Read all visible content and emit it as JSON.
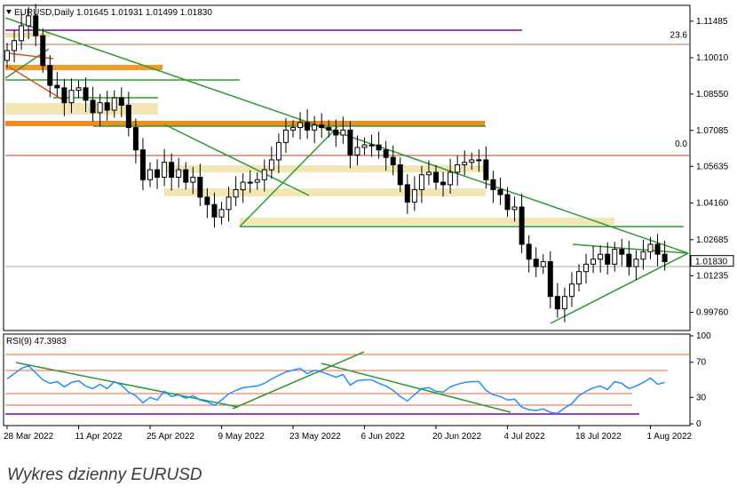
{
  "header": {
    "symbol": "EURUSD,Daily",
    "ohlc": "1.01645 1.01931 1.01499 1.01830"
  },
  "caption": "Wykres dzienny EURUSD",
  "chart_data": {
    "type": "candlestick",
    "price_ticks": [
      "1.11485",
      "1.10010",
      "1.08550",
      "1.07085",
      "1.05635",
      "1.04160",
      "1.02685",
      "1.01235",
      "0.99760"
    ],
    "price_range": [
      0.991,
      1.1205
    ],
    "current_price": {
      "value": 1.0183,
      "label": "1.01830"
    },
    "fib_labels": [
      {
        "text": "23.6",
        "price": 1.107
      },
      {
        "text": "0.0",
        "price": 1.0633
      }
    ],
    "date_labels": [
      {
        "text": "28 Mar 2022",
        "index": 0
      },
      {
        "text": "11 Apr 2022",
        "index": 10
      },
      {
        "text": "25 Apr 2022",
        "index": 20
      },
      {
        "text": "9 May 2022",
        "index": 30
      },
      {
        "text": "23 May 2022",
        "index": 40
      },
      {
        "text": "6 Jun 2022",
        "index": 50
      },
      {
        "text": "20 Jun 2022",
        "index": 60
      },
      {
        "text": "4 Jul 2022",
        "index": 70
      },
      {
        "text": "18 Jul 2022",
        "index": 80
      },
      {
        "text": "1 Aug 2022",
        "index": 90
      }
    ],
    "candle_step_days": 1,
    "closes": [
      1.103,
      1.107,
      1.113,
      1.117,
      1.109,
      1.097,
      1.089,
      1.088,
      1.082,
      1.087,
      1.088,
      1.083,
      1.078,
      1.082,
      1.079,
      1.084,
      1.081,
      1.072,
      1.063,
      1.051,
      1.055,
      1.052,
      1.058,
      1.052,
      1.055,
      1.05,
      1.052,
      1.044,
      1.041,
      1.036,
      1.039,
      1.044,
      1.047,
      1.05,
      1.05,
      1.051,
      1.055,
      1.059,
      1.066,
      1.071,
      1.072,
      1.074,
      1.071,
      1.073,
      1.072,
      1.071,
      1.069,
      1.071,
      1.061,
      1.064,
      1.065,
      1.065,
      1.063,
      1.06,
      1.057,
      1.049,
      1.042,
      1.047,
      1.053,
      1.054,
      1.05,
      1.049,
      1.054,
      1.057,
      1.058,
      1.059,
      1.059,
      1.051,
      1.047,
      1.045,
      1.039,
      1.04,
      1.025,
      1.019,
      1.016,
      1.018,
      1.004,
      0.999,
      1.004,
      1.009,
      1.014,
      1.017,
      1.019,
      1.021,
      1.017,
      1.023,
      1.021,
      1.016,
      1.019,
      1.022,
      1.025,
      1.021,
      1.018
    ],
    "rsi": {
      "label": "RSI(9) 47.3983",
      "ticks": [
        "100",
        "70",
        "30",
        "0"
      ],
      "values": [
        51,
        57,
        63,
        66,
        58,
        50,
        46,
        48,
        42,
        47,
        49,
        43,
        40,
        45,
        40,
        48,
        44,
        36,
        32,
        24,
        30,
        27,
        37,
        31,
        33,
        29,
        32,
        27,
        25,
        21,
        27,
        34,
        38,
        41,
        42,
        43,
        46,
        51,
        55,
        59,
        61,
        63,
        57,
        61,
        59,
        56,
        53,
        56,
        44,
        49,
        50,
        50,
        46,
        43,
        38,
        31,
        26,
        33,
        40,
        41,
        37,
        36,
        42,
        45,
        47,
        48,
        48,
        38,
        33,
        31,
        27,
        28,
        19,
        16,
        15,
        17,
        13,
        12,
        18,
        23,
        32,
        37,
        41,
        43,
        39,
        48,
        46,
        40,
        43,
        47,
        52,
        45,
        47
      ]
    }
  }
}
